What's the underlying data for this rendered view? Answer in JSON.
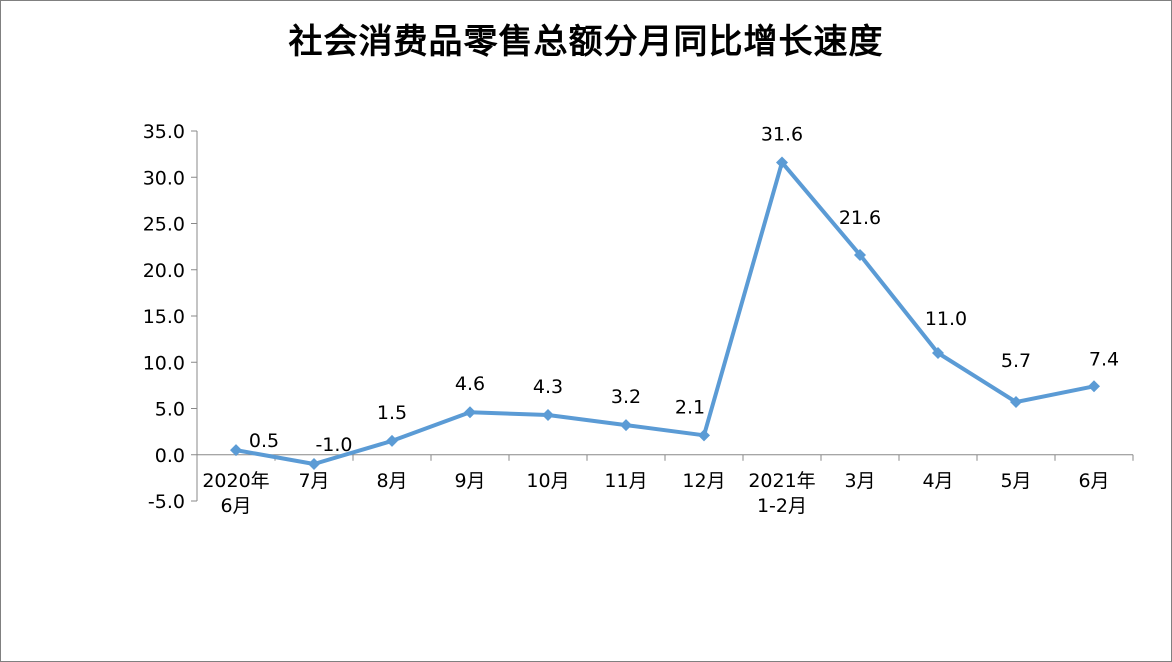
{
  "chart_data": {
    "type": "line",
    "title": "社会消费品零售总额分月同比增长速度",
    "xlabel": "",
    "ylabel": "",
    "categories": [
      [
        "2020年",
        "6月"
      ],
      [
        "7月"
      ],
      [
        "8月"
      ],
      [
        "9月"
      ],
      [
        "10月"
      ],
      [
        "11月"
      ],
      [
        "12月"
      ],
      [
        "2021年",
        "1-2月"
      ],
      [
        "3月"
      ],
      [
        "4月"
      ],
      [
        "5月"
      ],
      [
        "6月"
      ]
    ],
    "values": [
      0.5,
      -1.0,
      1.5,
      4.6,
      4.3,
      3.2,
      2.1,
      31.6,
      21.6,
      11.0,
      5.7,
      7.4
    ],
    "data_labels": [
      "0.5",
      "-1.0",
      "1.5",
      "4.6",
      "4.3",
      "3.2",
      "2.1",
      "31.6",
      "21.6",
      "11.0",
      "5.7",
      "7.4"
    ],
    "ylim": [
      -5.0,
      35.0
    ],
    "y_ticks": [
      -5.0,
      0.0,
      5.0,
      10.0,
      15.0,
      20.0,
      25.0,
      30.0,
      35.0
    ],
    "y_tick_labels": [
      "-5.0",
      "0.0",
      "5.0",
      "10.0",
      "15.0",
      "20.0",
      "25.0",
      "30.0",
      "35.0"
    ],
    "grid": false,
    "legend": "none",
    "line_color": "#5B9BD5",
    "marker": "diamond"
  }
}
